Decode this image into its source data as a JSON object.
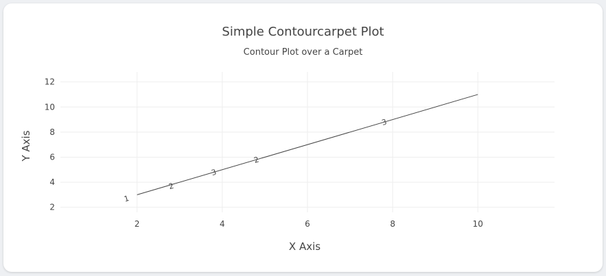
{
  "title": "Simple Contourcarpet Plot",
  "subtitle": "Contour Plot over a Carpet",
  "chart_data": {
    "type": "contour",
    "title": "Simple Contourcarpet Plot",
    "subtitle": "Contour Plot over a Carpet",
    "xlabel": "X Axis",
    "ylabel": "Y Axis",
    "xlim": [
      0.2,
      11.8
    ],
    "ylim": [
      1.6,
      12.8
    ],
    "x_ticks": [
      2,
      4,
      6,
      8,
      10
    ],
    "y_ticks": [
      2,
      4,
      6,
      8,
      10,
      12
    ],
    "grid": true,
    "carpet_line": [
      {
        "x": 2,
        "y": 3
      },
      {
        "x": 10,
        "y": 11
      }
    ],
    "contour_labels": [
      {
        "text": "1",
        "x": 1.75,
        "y": 2.7
      },
      {
        "text": "2",
        "x": 2.8,
        "y": 3.7
      },
      {
        "text": "3",
        "x": 3.8,
        "y": 4.8
      },
      {
        "text": "2",
        "x": 4.8,
        "y": 5.8
      },
      {
        "text": "3",
        "x": 7.8,
        "y": 8.8
      }
    ],
    "line_color": "#444444",
    "grid_color": "#eeeeee"
  }
}
